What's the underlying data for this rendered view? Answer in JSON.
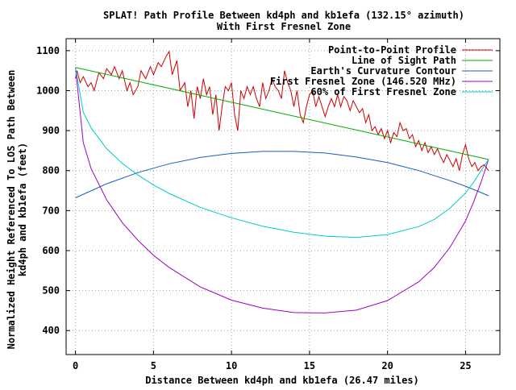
{
  "chart_data": {
    "type": "line",
    "title": "SPLAT! Path Profile Between kd4ph and kb1efa (132.15° azimuth)",
    "subtitle": "With First Fresnel Zone",
    "xlabel": "Distance Between kd4ph and kb1efa (26.47 miles)",
    "ylabel_line1": "Normalized Height Referenced To LOS Path Between",
    "ylabel_line2": "kd4ph and kb1efa (feet)",
    "xlim": [
      -0.6,
      27.2
    ],
    "ylim": [
      340,
      1130
    ],
    "xticks": [
      0,
      5,
      10,
      15,
      20,
      25
    ],
    "yticks": [
      400,
      500,
      600,
      700,
      800,
      900,
      1000,
      1100
    ],
    "grid": true,
    "legend_position": "top-right",
    "colors": {
      "profile": "#cc0000",
      "los": "#00aa00",
      "curvature": "#1060c0",
      "fresnel": "#a000c8",
      "fresnel60": "#00cccc"
    },
    "series": [
      {
        "name": "Point-to-Point Profile",
        "color": "#cc0000",
        "points": [
          [
            0,
            1030
          ],
          [
            0.1,
            1050
          ],
          [
            0.3,
            1020
          ],
          [
            0.5,
            1035
          ],
          [
            0.8,
            1010
          ],
          [
            1.0,
            1020
          ],
          [
            1.2,
            1000
          ],
          [
            1.5,
            1045
          ],
          [
            1.8,
            1030
          ],
          [
            2.0,
            1055
          ],
          [
            2.3,
            1040
          ],
          [
            2.5,
            1060
          ],
          [
            2.8,
            1030
          ],
          [
            3.0,
            1050
          ],
          [
            3.3,
            1000
          ],
          [
            3.5,
            1020
          ],
          [
            3.7,
            990
          ],
          [
            4.0,
            1010
          ],
          [
            4.2,
            1050
          ],
          [
            4.5,
            1030
          ],
          [
            4.8,
            1060
          ],
          [
            5.0,
            1040
          ],
          [
            5.3,
            1070
          ],
          [
            5.5,
            1060
          ],
          [
            5.8,
            1085
          ],
          [
            6.0,
            1098
          ],
          [
            6.2,
            1040
          ],
          [
            6.5,
            1075
          ],
          [
            6.7,
            1000
          ],
          [
            7.0,
            1020
          ],
          [
            7.2,
            960
          ],
          [
            7.4,
            1000
          ],
          [
            7.6,
            930
          ],
          [
            7.8,
            1010
          ],
          [
            8.0,
            980
          ],
          [
            8.2,
            1030
          ],
          [
            8.4,
            990
          ],
          [
            8.6,
            1010
          ],
          [
            8.8,
            940
          ],
          [
            9.0,
            990
          ],
          [
            9.2,
            900
          ],
          [
            9.4,
            960
          ],
          [
            9.6,
            1010
          ],
          [
            9.8,
            1000
          ],
          [
            10.0,
            1020
          ],
          [
            10.2,
            940
          ],
          [
            10.4,
            900
          ],
          [
            10.6,
            1000
          ],
          [
            10.8,
            980
          ],
          [
            11.0,
            1010
          ],
          [
            11.2,
            990
          ],
          [
            11.4,
            1010
          ],
          [
            11.6,
            980
          ],
          [
            11.8,
            960
          ],
          [
            12.0,
            1020
          ],
          [
            12.2,
            980
          ],
          [
            12.4,
            1000
          ],
          [
            12.6,
            1030
          ],
          [
            12.8,
            1010
          ],
          [
            13.0,
            1000
          ],
          [
            13.2,
            980
          ],
          [
            13.4,
            1050
          ],
          [
            13.6,
            1020
          ],
          [
            13.8,
            1000
          ],
          [
            14.0,
            960
          ],
          [
            14.2,
            1000
          ],
          [
            14.4,
            940
          ],
          [
            14.6,
            920
          ],
          [
            14.8,
            960
          ],
          [
            15.0,
            990
          ],
          [
            15.2,
            1000
          ],
          [
            15.4,
            960
          ],
          [
            15.6,
            985
          ],
          [
            15.8,
            960
          ],
          [
            16.0,
            935
          ],
          [
            16.2,
            960
          ],
          [
            16.4,
            980
          ],
          [
            16.6,
            960
          ],
          [
            16.8,
            990
          ],
          [
            17.0,
            960
          ],
          [
            17.2,
            985
          ],
          [
            17.4,
            975
          ],
          [
            17.6,
            950
          ],
          [
            17.8,
            975
          ],
          [
            18.0,
            960
          ],
          [
            18.2,
            945
          ],
          [
            18.4,
            955
          ],
          [
            18.6,
            920
          ],
          [
            18.8,
            940
          ],
          [
            19.0,
            900
          ],
          [
            19.2,
            910
          ],
          [
            19.4,
            890
          ],
          [
            19.6,
            905
          ],
          [
            19.8,
            880
          ],
          [
            20.0,
            900
          ],
          [
            20.2,
            870
          ],
          [
            20.4,
            895
          ],
          [
            20.6,
            885
          ],
          [
            20.8,
            920
          ],
          [
            21.0,
            900
          ],
          [
            21.2,
            905
          ],
          [
            21.4,
            880
          ],
          [
            21.6,
            890
          ],
          [
            21.8,
            860
          ],
          [
            22.0,
            875
          ],
          [
            22.2,
            850
          ],
          [
            22.4,
            870
          ],
          [
            22.6,
            845
          ],
          [
            22.8,
            860
          ],
          [
            23.0,
            840
          ],
          [
            23.2,
            855
          ],
          [
            23.4,
            835
          ],
          [
            23.6,
            820
          ],
          [
            23.8,
            840
          ],
          [
            24.0,
            825
          ],
          [
            24.2,
            810
          ],
          [
            24.4,
            830
          ],
          [
            24.6,
            800
          ],
          [
            24.8,
            840
          ],
          [
            25.0,
            865
          ],
          [
            25.2,
            830
          ],
          [
            25.4,
            810
          ],
          [
            25.6,
            820
          ],
          [
            25.8,
            800
          ],
          [
            26.0,
            810
          ],
          [
            26.2,
            815
          ],
          [
            26.47,
            800
          ]
        ]
      },
      {
        "name": "Line of Sight Path",
        "color": "#00aa00",
        "points": [
          [
            0,
            1058
          ],
          [
            26.47,
            828
          ]
        ]
      },
      {
        "name": "Earth's Curvature Contour",
        "color": "#1060c0",
        "points": [
          [
            0,
            732
          ],
          [
            2,
            767
          ],
          [
            4,
            795
          ],
          [
            6,
            817
          ],
          [
            8,
            833
          ],
          [
            10,
            843
          ],
          [
            12,
            848
          ],
          [
            14,
            848
          ],
          [
            16,
            844
          ],
          [
            18,
            834
          ],
          [
            20,
            820
          ],
          [
            22,
            800
          ],
          [
            24,
            775
          ],
          [
            25,
            761
          ],
          [
            26,
            745
          ],
          [
            26.47,
            737
          ]
        ]
      },
      {
        "name": "First Fresnel Zone (146.520 MHz)",
        "color": "#a000c8",
        "points": [
          [
            0,
            1058
          ],
          [
            0.5,
            870
          ],
          [
            1.0,
            805
          ],
          [
            2.0,
            727
          ],
          [
            3.0,
            670
          ],
          [
            4.0,
            626
          ],
          [
            5.0,
            588
          ],
          [
            6.0,
            558
          ],
          [
            8.0,
            509
          ],
          [
            10.0,
            476
          ],
          [
            12.0,
            456
          ],
          [
            14.0,
            445
          ],
          [
            16.0,
            444
          ],
          [
            18.0,
            451
          ],
          [
            20.0,
            475
          ],
          [
            22.0,
            522
          ],
          [
            23.0,
            558
          ],
          [
            24.0,
            608
          ],
          [
            25.0,
            674
          ],
          [
            25.5,
            720
          ],
          [
            26.0,
            772
          ],
          [
            26.47,
            828
          ]
        ]
      },
      {
        "name": "60% of First Fresnel Zone",
        "color": "#00cccc",
        "points": [
          [
            0,
            1058
          ],
          [
            0.5,
            946
          ],
          [
            1.0,
            907
          ],
          [
            2.0,
            855
          ],
          [
            3.0,
            818
          ],
          [
            4.0,
            789
          ],
          [
            5.0,
            764
          ],
          [
            6.0,
            743
          ],
          [
            8.0,
            708
          ],
          [
            10.0,
            682
          ],
          [
            12.0,
            661
          ],
          [
            14.0,
            646
          ],
          [
            16.0,
            636
          ],
          [
            18.0,
            633
          ],
          [
            20.0,
            640
          ],
          [
            22.0,
            660
          ],
          [
            23.0,
            678
          ],
          [
            24.0,
            706
          ],
          [
            25.0,
            744
          ],
          [
            25.5,
            770
          ],
          [
            26.0,
            800
          ],
          [
            26.47,
            828
          ]
        ]
      }
    ]
  }
}
